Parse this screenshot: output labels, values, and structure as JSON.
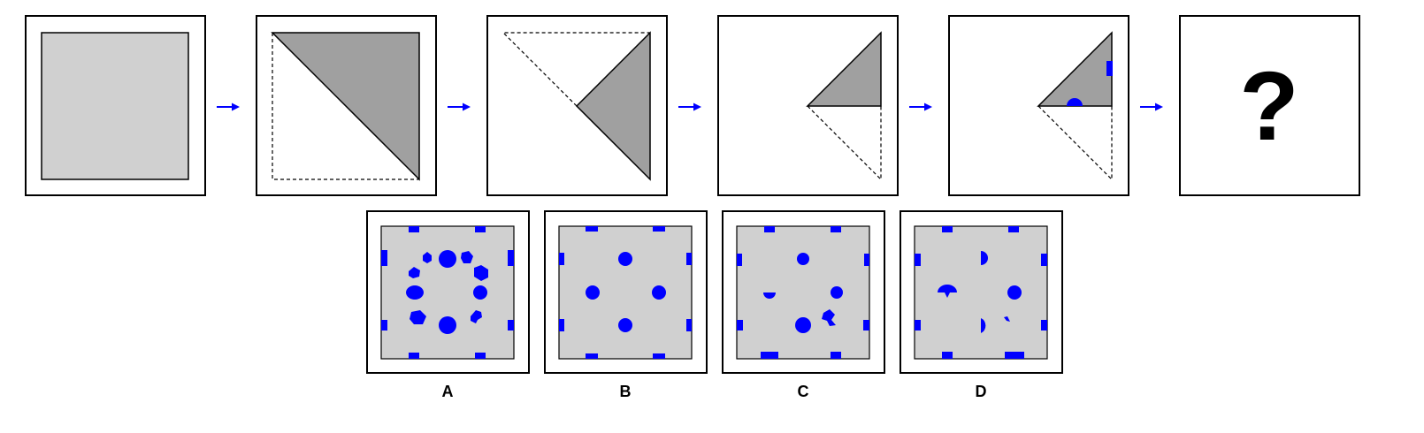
{
  "colors": {
    "paper_unfolded": "#d0d0d0",
    "paper_folded": "#a0a0a0",
    "frame": "#000000",
    "punch": "#0000ff",
    "arrow": "#0000ff"
  },
  "sequence": {
    "steps": [
      {
        "name": "unfolded-square-paper"
      },
      {
        "name": "fold-diagonal"
      },
      {
        "name": "fold-half-triangle"
      },
      {
        "name": "fold-quarter-triangle"
      },
      {
        "name": "punched-folded-paper"
      },
      {
        "name": "question-panel"
      }
    ],
    "arrow_count": 5,
    "question_mark": "?"
  },
  "options": [
    {
      "label": "A"
    },
    {
      "label": "B"
    },
    {
      "label": "C"
    },
    {
      "label": "D"
    }
  ]
}
